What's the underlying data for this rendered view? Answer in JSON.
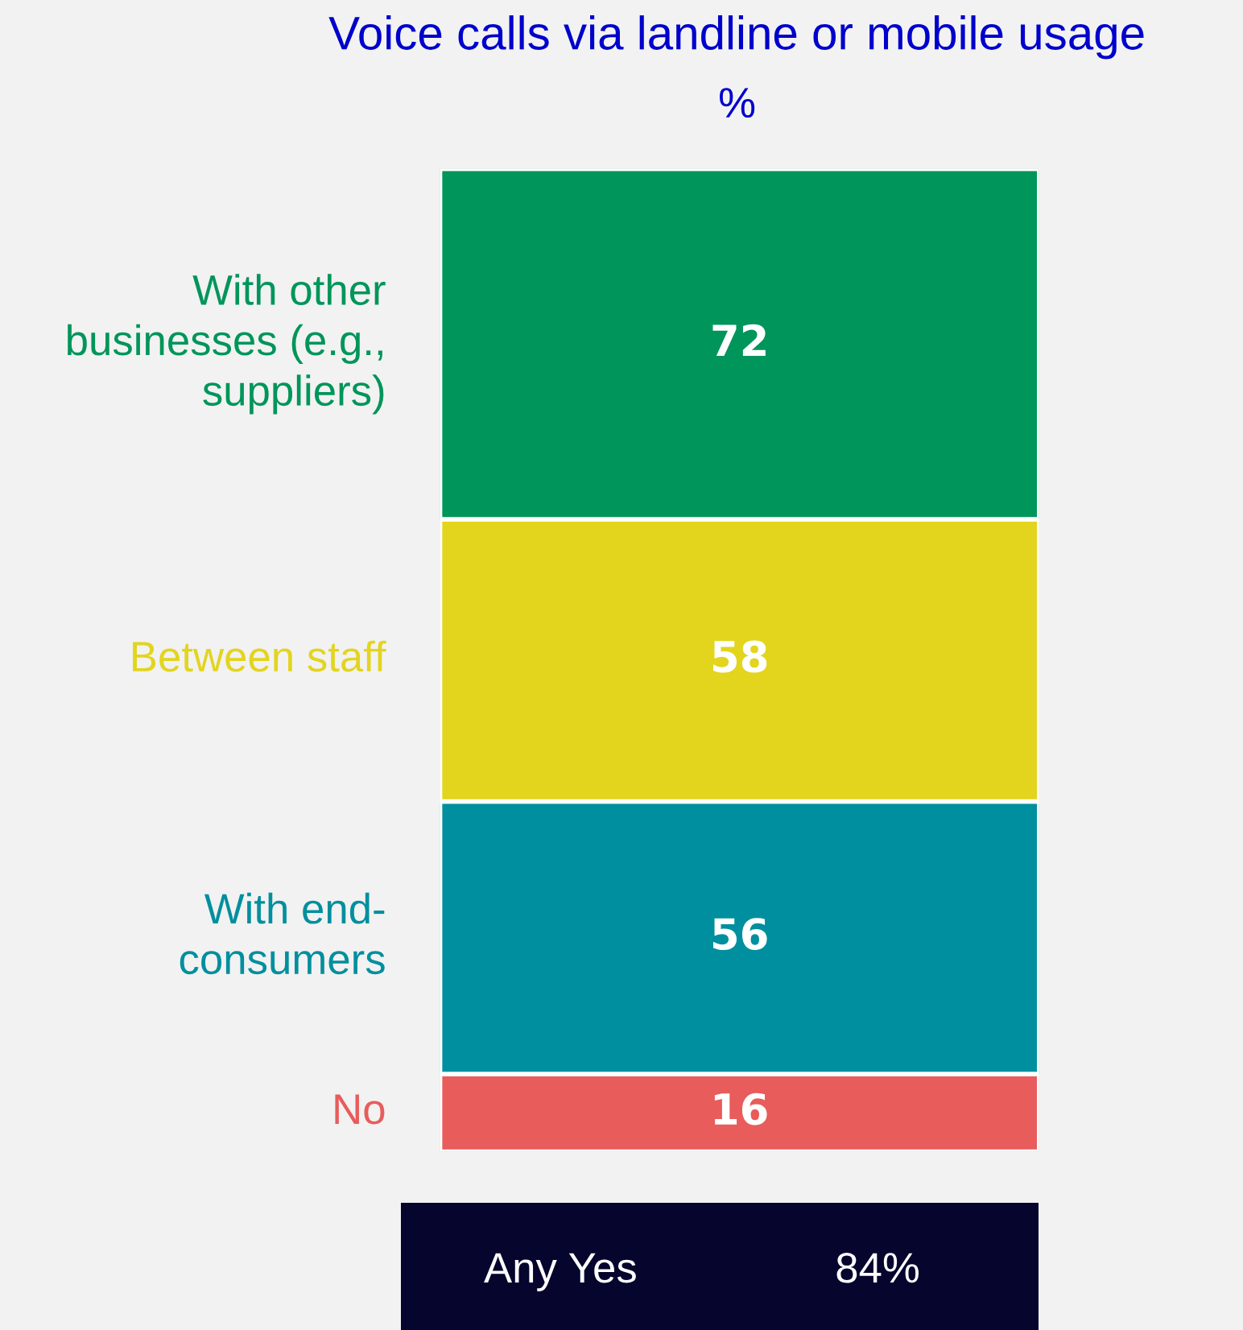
{
  "chart_data": {
    "type": "bar",
    "title": "Voice calls via landline or mobile usage",
    "subtitle": "%",
    "stacked": true,
    "categories": [
      null
    ],
    "data_labels": true,
    "tick_labels": false,
    "series": [
      {
        "name": "No",
        "color": "#e85c5c",
        "values": [
          16
        ]
      },
      {
        "name": "With end-\nconsumers",
        "color": "#008f9e",
        "values": [
          56
        ]
      },
      {
        "name": "Between staff",
        "color": "#e3d41e",
        "values": [
          58
        ]
      },
      {
        "name": "With other\nbusinesses (e.g.,\nsuppliers)",
        "color": "#00955a",
        "values": [
          72
        ]
      }
    ],
    "annotations": [
      "Any Yes",
      "84%"
    ]
  }
}
